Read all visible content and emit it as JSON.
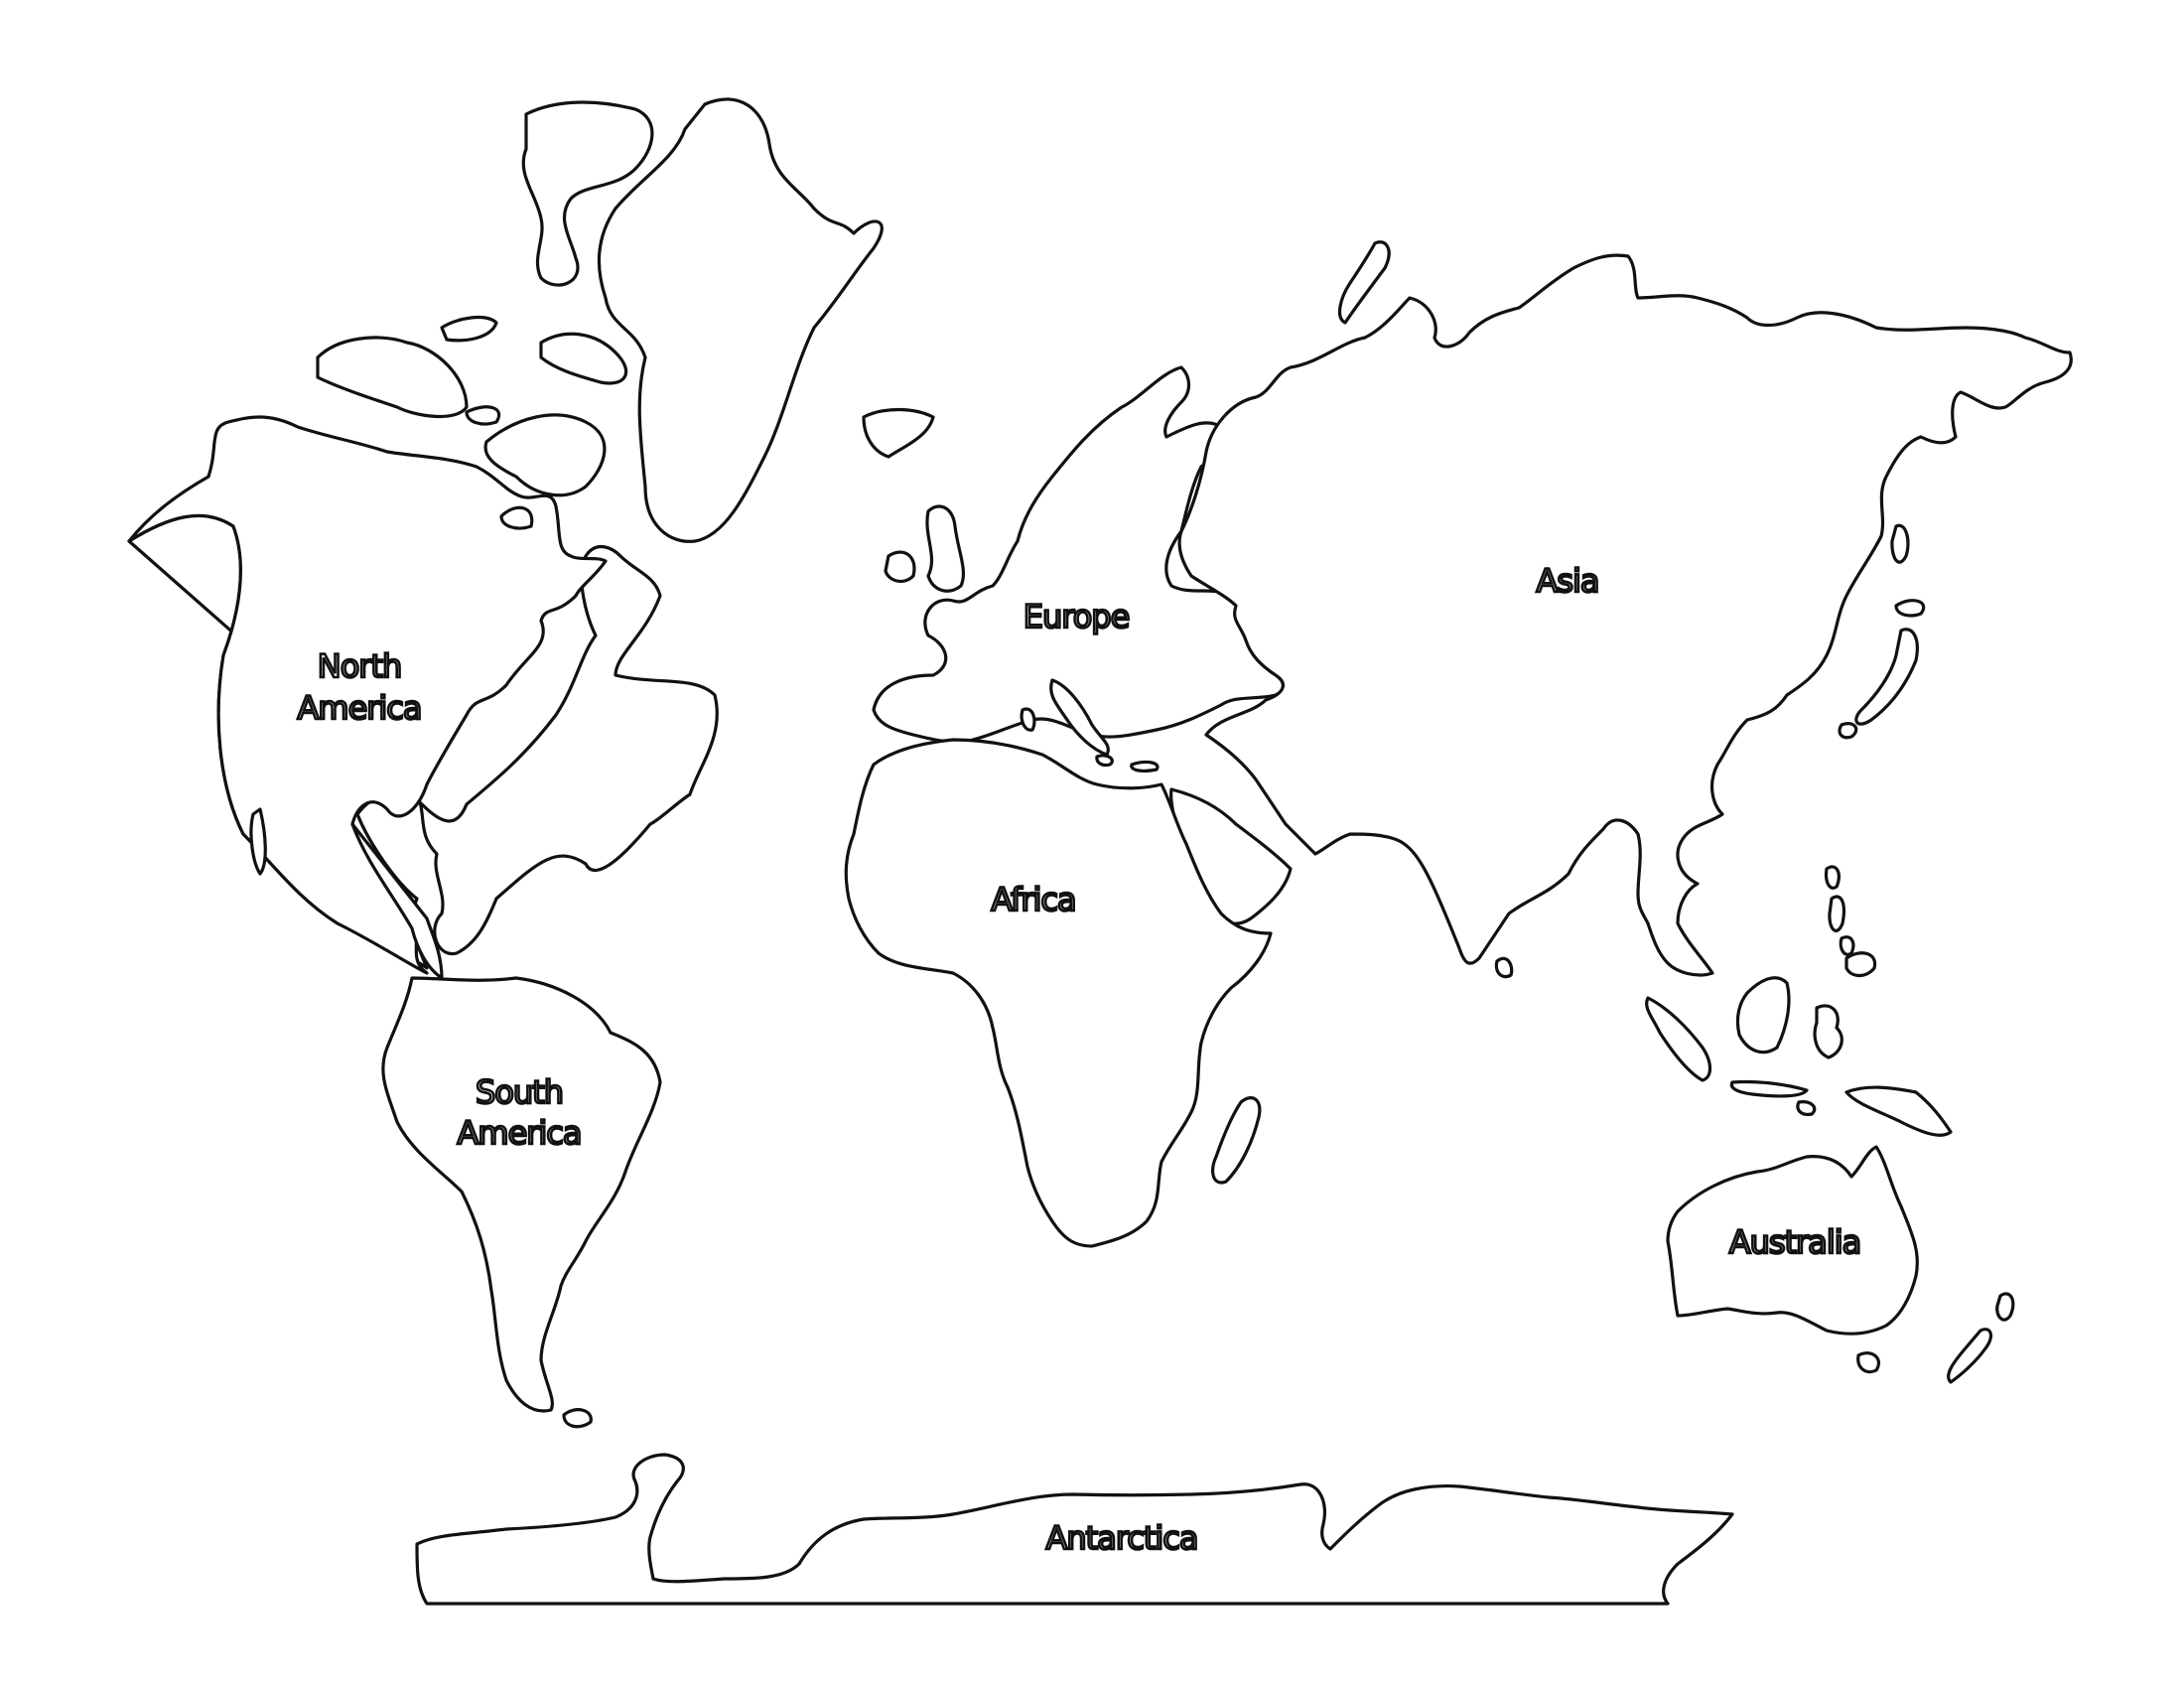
{
  "map": {
    "labels": {
      "north_america_line1": "North",
      "north_america_line2": "America",
      "south_america_line1": "South",
      "south_america_line2": "America",
      "europe": "Europe",
      "africa": "Africa",
      "asia": "Asia",
      "australia": "Australia",
      "antarctica": "Antarctica"
    },
    "colors": {
      "outline": "#111111",
      "land": "#ffffff",
      "background": "#ffffff"
    }
  }
}
